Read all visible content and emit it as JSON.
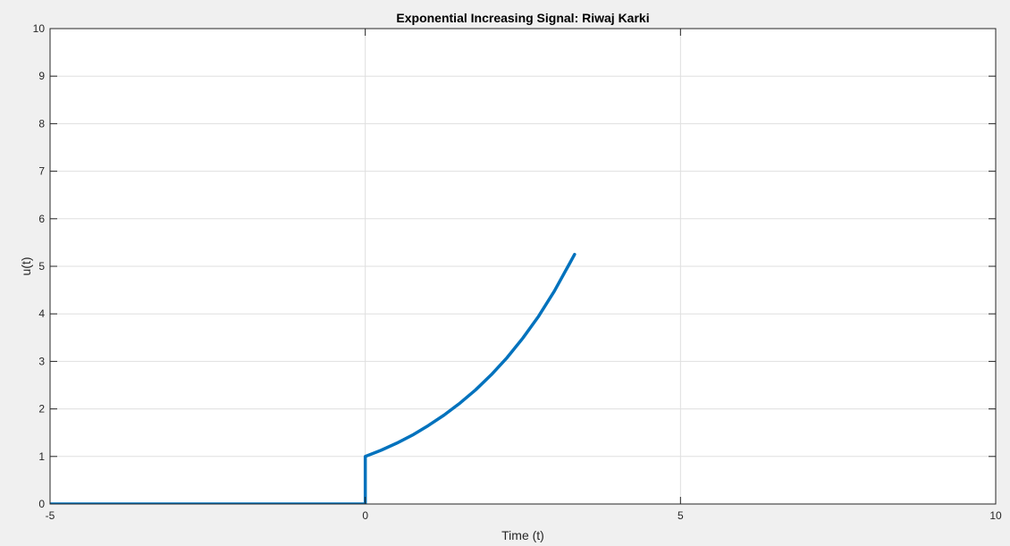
{
  "chart_data": {
    "type": "line",
    "title": "Exponential Increasing Signal: Riwaj Karki",
    "xlabel": "Time (t)",
    "ylabel": "u(t)",
    "xlim": [
      -5,
      10
    ],
    "ylim": [
      0,
      10
    ],
    "xticks": [
      -5,
      0,
      5,
      10
    ],
    "yticks": [
      0,
      1,
      2,
      3,
      4,
      5,
      6,
      7,
      8,
      9,
      10
    ],
    "grid": true,
    "series": [
      {
        "color": "#0072bd",
        "x": [
          -5,
          -4,
          -3,
          -2,
          -1,
          0,
          0,
          0.25,
          0.5,
          0.75,
          1,
          1.25,
          1.5,
          1.75,
          2,
          2.25,
          2.5,
          2.75,
          3,
          3.25,
          3.32
        ],
        "y": [
          0,
          0,
          0,
          0,
          0,
          0,
          1,
          1.13,
          1.28,
          1.45,
          1.65,
          1.87,
          2.12,
          2.4,
          2.72,
          3.08,
          3.49,
          3.95,
          4.48,
          5.08,
          5.25
        ]
      }
    ]
  },
  "colors": {
    "figure_background": "#f0f0f0",
    "axes_background": "#ffffff",
    "grid": "#dfdfdf",
    "axis": "#262626",
    "line": "#0072bd"
  }
}
